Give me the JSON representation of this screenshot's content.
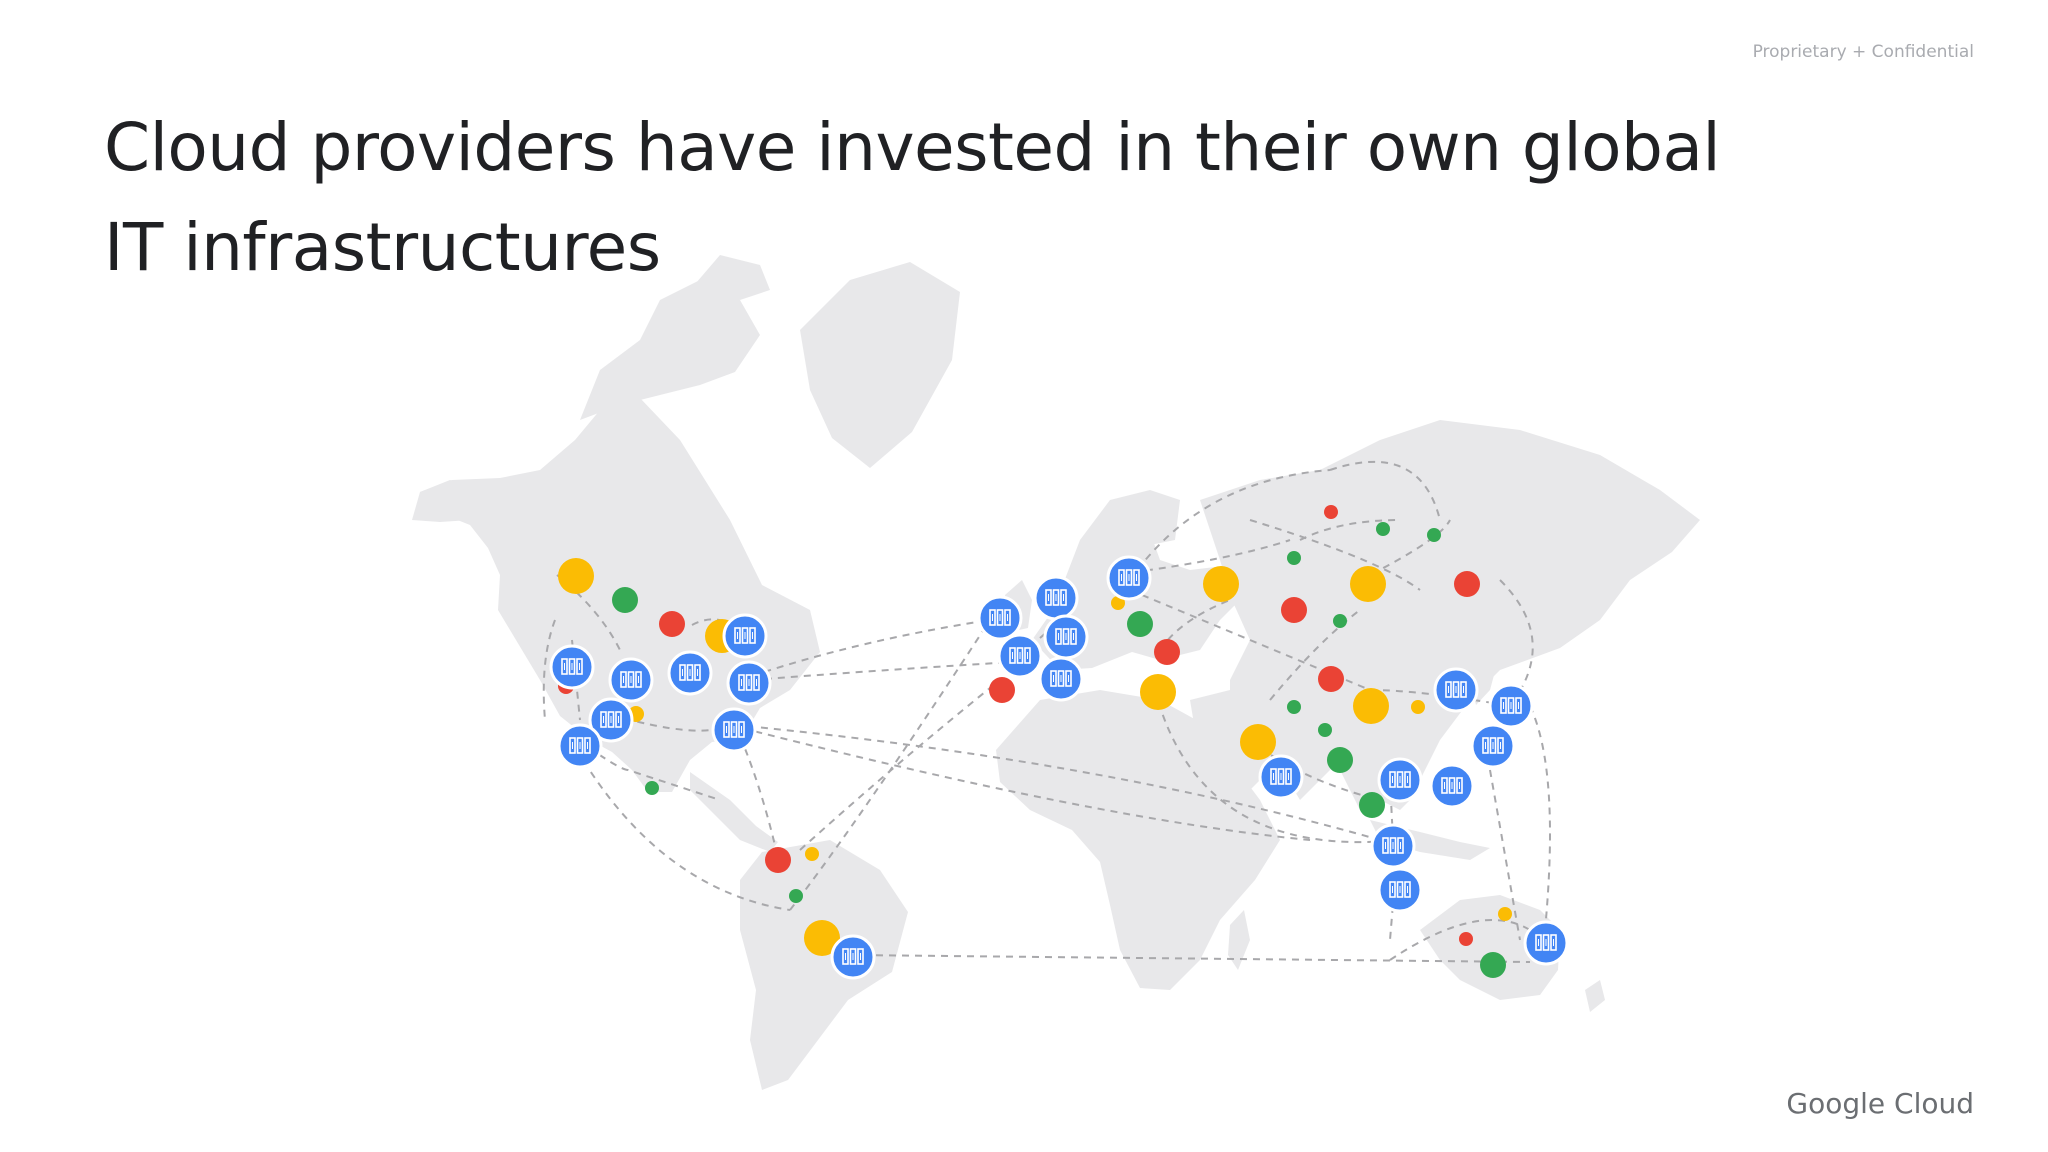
{
  "header": {
    "confidential": "Proprietary + Confidential"
  },
  "slide": {
    "title_line1": "Cloud providers have invested in their own global",
    "title_line2": "IT infrastructures"
  },
  "footer": {
    "logo_text": "Google Cloud"
  },
  "map": {
    "land_color": "#e8e8ea",
    "route_color": "#a8a8ab",
    "marker_colors": {
      "region": "#4285f4",
      "red": "#ea4335",
      "yellow": "#fbbc04",
      "green": "#34a853"
    },
    "region_icon": "server-rack-icon"
  }
}
